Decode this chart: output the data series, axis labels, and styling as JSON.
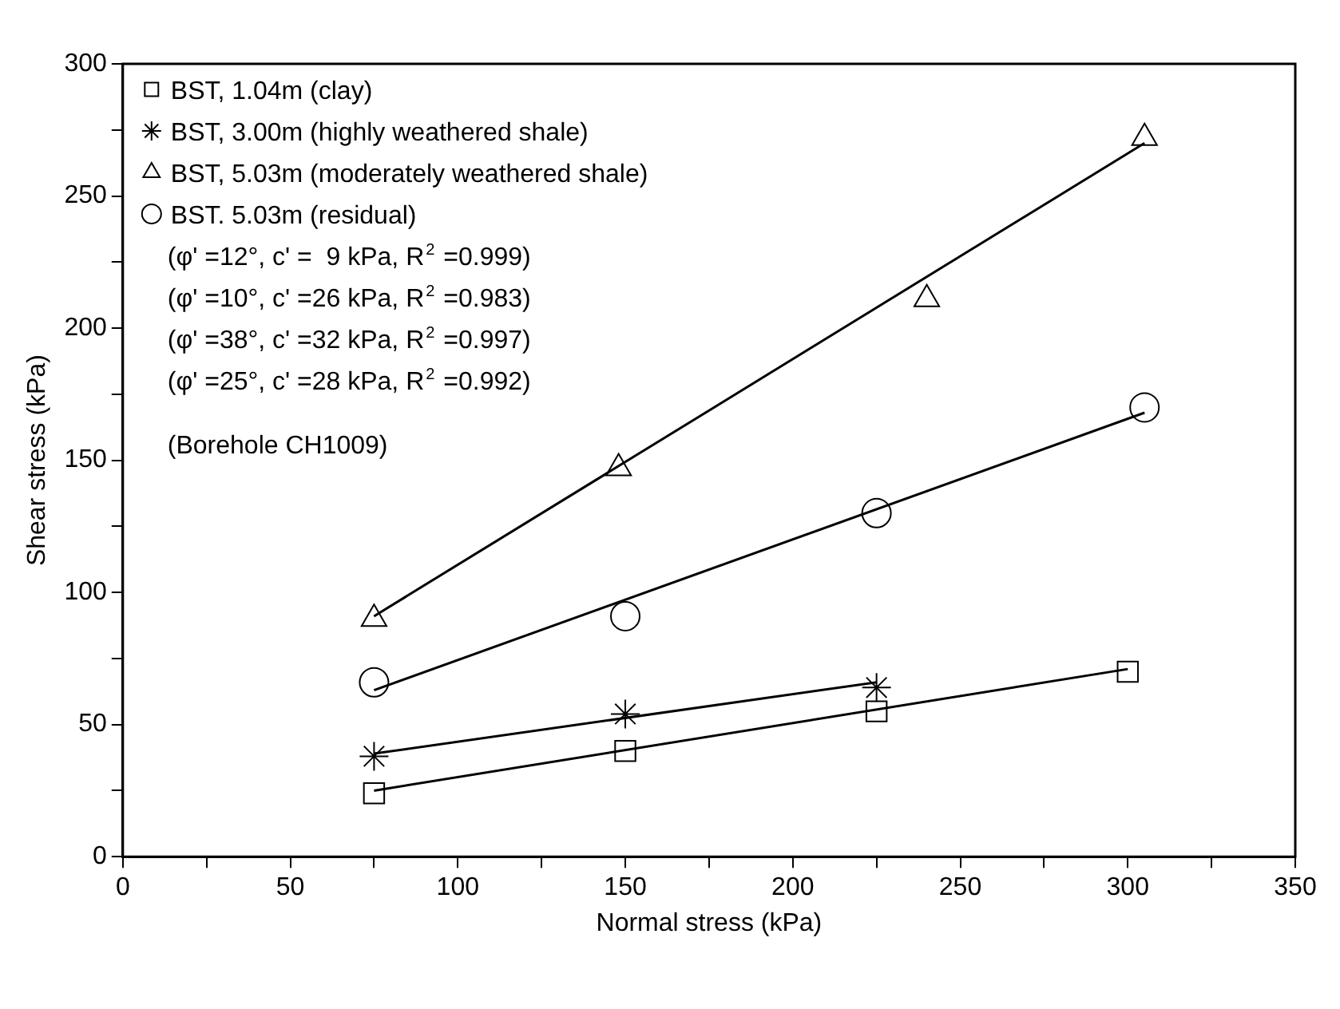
{
  "chart_data": {
    "type": "scatter",
    "xlabel": "Normal stress (kPa)",
    "ylabel": "Shear stress (kPa)",
    "xlim": [
      0,
      350
    ],
    "xticks": [
      0,
      {
        "value": 25,
        "label": null
      },
      50,
      {
        "value": 75,
        "label": null
      },
      100,
      {
        "value": 125,
        "label": null
      },
      150,
      {
        "value": 175,
        "label": null
      },
      200,
      {
        "value": 225,
        "label": null
      },
      250,
      {
        "value": 275,
        "label": null
      },
      300,
      {
        "value": 325,
        "label": null
      },
      350
    ],
    "ylim": [
      0,
      300
    ],
    "yticks": [
      0,
      {
        "value": 25,
        "label": null
      },
      50,
      {
        "value": 75,
        "label": null
      },
      100,
      {
        "value": 125,
        "label": null
      },
      150,
      {
        "value": 175,
        "label": null
      },
      200,
      {
        "value": 225,
        "label": null
      },
      250,
      {
        "value": 275,
        "label": null
      },
      300
    ],
    "grid": false,
    "legend": "top left",
    "series": [
      {
        "name": "BST, 1.04m (clay)",
        "color": "#000000",
        "marker": "square",
        "x": [
          75,
          150,
          225,
          300
        ],
        "values": [
          24,
          40,
          55,
          70
        ]
      },
      {
        "name": "BST, 3.00m (highly weathered shale)",
        "color": "#000000",
        "marker": "cross",
        "x": [
          75,
          150,
          225
        ],
        "values": [
          38,
          54,
          64
        ]
      },
      {
        "name": "BST, 5.03m (moderately weathered shale)",
        "color": "#000000",
        "marker": "triangle",
        "x": [
          75,
          148,
          240,
          305
        ],
        "values": [
          90,
          147,
          211,
          272
        ]
      },
      {
        "name": "BST. 5.03m (residual)",
        "color": "#000000",
        "marker": "circle",
        "x": [
          75,
          150,
          225,
          305
        ],
        "values": [
          66,
          91,
          130,
          170
        ]
      },
      {
        "type": "line",
        "color": "#000000",
        "marker": "none",
        "x": [
          75,
          300
        ],
        "values": [
          25,
          71
        ]
      },
      {
        "type": "line",
        "color": "#000000",
        "marker": "none",
        "x": [
          75,
          225
        ],
        "values": [
          39,
          66
        ]
      },
      {
        "type": "line",
        "color": "#000000",
        "marker": "none",
        "x": [
          75,
          305
        ],
        "values": [
          91,
          270
        ]
      },
      {
        "type": "line",
        "color": "#000000",
        "marker": "none",
        "x": [
          75,
          305
        ],
        "values": [
          63,
          168
        ]
      }
    ],
    "annotations": [
      "(φ' =12°, c' =  9 kPa, R$^{2}$ =0.999)",
      "(φ' =10°, c' =26 kPa, R$^{2}$ =0.983)",
      "(φ' =38°, c' =32 kPa, R$^{2}$ =0.997)",
      "(φ' =25°, c' =28 kPa, R$^{2}$ =0.992)",
      "(Borehole CH1009)"
    ]
  }
}
